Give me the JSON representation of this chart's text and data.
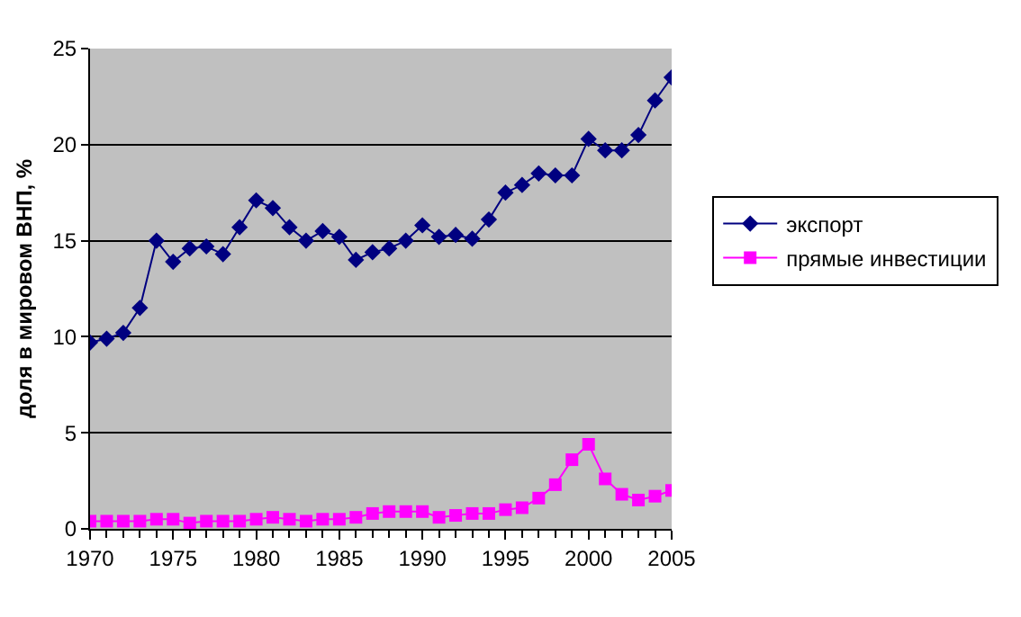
{
  "chart_data": {
    "type": "line",
    "ylabel": "доля в мировом ВНП, %",
    "x": [
      1970,
      1971,
      1972,
      1973,
      1974,
      1975,
      1976,
      1977,
      1978,
      1979,
      1980,
      1981,
      1982,
      1983,
      1984,
      1985,
      1986,
      1987,
      1988,
      1989,
      1990,
      1991,
      1992,
      1993,
      1994,
      1995,
      1996,
      1997,
      1998,
      1999,
      2000,
      2001,
      2002,
      2003,
      2004,
      2005
    ],
    "series": [
      {
        "name": "экспорт",
        "color": "#000080",
        "marker": "diamond",
        "values": [
          9.7,
          9.9,
          10.2,
          11.5,
          15.0,
          13.9,
          14.6,
          14.7,
          14.3,
          15.7,
          17.1,
          16.7,
          15.7,
          15.0,
          15.5,
          15.2,
          14.0,
          14.4,
          14.6,
          15.0,
          15.8,
          15.2,
          15.3,
          15.1,
          16.1,
          17.5,
          17.9,
          18.5,
          18.4,
          18.4,
          20.3,
          19.7,
          19.7,
          20.5,
          22.3,
          23.5
        ]
      },
      {
        "name": "прямые инвестиции",
        "color": "#ff00ff",
        "marker": "square",
        "values": [
          0.4,
          0.4,
          0.4,
          0.4,
          0.5,
          0.5,
          0.3,
          0.4,
          0.4,
          0.4,
          0.5,
          0.6,
          0.5,
          0.4,
          0.5,
          0.5,
          0.6,
          0.8,
          0.9,
          0.9,
          0.9,
          0.6,
          0.7,
          0.8,
          0.8,
          1.0,
          1.1,
          1.6,
          2.3,
          3.6,
          4.4,
          2.6,
          1.8,
          1.5,
          1.7,
          2.0
        ]
      }
    ],
    "xlim": [
      1970,
      2005
    ],
    "xticks": [
      1970,
      1975,
      1980,
      1985,
      1990,
      1995,
      2000,
      2005
    ],
    "ylim": [
      0,
      25
    ],
    "yticks": [
      0,
      5,
      10,
      15,
      20,
      25
    ],
    "grid": "y",
    "legend": "right",
    "line_style": "solid"
  }
}
